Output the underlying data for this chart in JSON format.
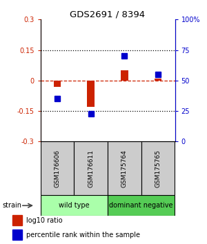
{
  "title": "GDS2691 / 8394",
  "samples": [
    "GSM176606",
    "GSM176611",
    "GSM175764",
    "GSM175765"
  ],
  "log10_ratio": [
    -0.03,
    -0.13,
    0.05,
    0.01
  ],
  "percentile_rank": [
    35,
    23,
    70,
    55
  ],
  "groups": [
    {
      "label": "wild type",
      "samples": [
        0,
        1
      ],
      "color": "#90EE90"
    },
    {
      "label": "dominant negative",
      "samples": [
        2,
        3
      ],
      "color": "#66CC66"
    }
  ],
  "ylim_left": [
    -0.3,
    0.3
  ],
  "ylim_right": [
    0,
    100
  ],
  "yticks_left": [
    -0.3,
    -0.15,
    0,
    0.15,
    0.3
  ],
  "yticks_right": [
    0,
    25,
    50,
    75,
    100
  ],
  "ytick_labels_left": [
    "-0.3",
    "-0.15",
    "0",
    "0.15",
    "0.3"
  ],
  "ytick_labels_right": [
    "0",
    "25",
    "50",
    "75",
    "100%"
  ],
  "hline_dotted": [
    -0.15,
    0.15
  ],
  "hline_red_dashed": 0,
  "log10_color": "#CC2200",
  "percentile_color": "#0000CC",
  "sample_box_color": "#cccccc",
  "strain_label": "strain",
  "wild_type_color": "#aaffaa",
  "dominant_neg_color": "#55cc55"
}
